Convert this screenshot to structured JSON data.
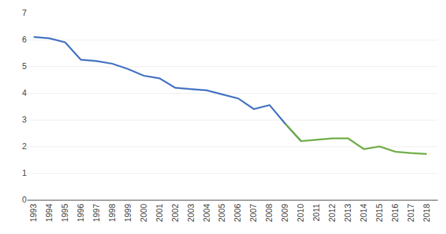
{
  "chart_data": {
    "type": "line",
    "x": [
      1993,
      1994,
      1995,
      1996,
      1997,
      1998,
      1999,
      2000,
      2001,
      2002,
      2003,
      2004,
      2005,
      2006,
      2007,
      2008,
      2009,
      2010,
      2011,
      2012,
      2013,
      2014,
      2015,
      2016,
      2017,
      2018
    ],
    "series": [
      {
        "color": "#4472c4",
        "values": [
          6.1,
          6.05,
          5.9,
          5.25,
          5.2,
          5.1,
          4.9,
          4.65,
          4.55,
          4.2,
          4.15,
          4.1,
          3.95,
          3.8,
          3.4,
          3.55,
          2.85,
          2.2,
          null,
          null,
          null,
          null,
          null,
          null,
          null,
          null
        ]
      },
      {
        "color": "#70ad47",
        "values": [
          null,
          null,
          null,
          null,
          null,
          null,
          null,
          null,
          null,
          null,
          null,
          null,
          null,
          null,
          null,
          null,
          2.85,
          2.2,
          2.25,
          2.3,
          2.3,
          1.9,
          2.0,
          1.8,
          1.75,
          1.72
        ]
      }
    ],
    "xlim": [
      1992.6,
      2018.7
    ],
    "xticks": [
      1993,
      1994,
      1995,
      1996,
      1997,
      1998,
      1999,
      2000,
      2001,
      2002,
      2003,
      2004,
      2005,
      2006,
      2007,
      2008,
      2009,
      2010,
      2011,
      2012,
      2013,
      2014,
      2015,
      2016,
      2017,
      2018
    ],
    "ylim": [
      0,
      7
    ],
    "yticks": [
      0,
      1,
      2,
      3,
      4,
      5,
      6,
      7
    ],
    "grid": "y"
  }
}
